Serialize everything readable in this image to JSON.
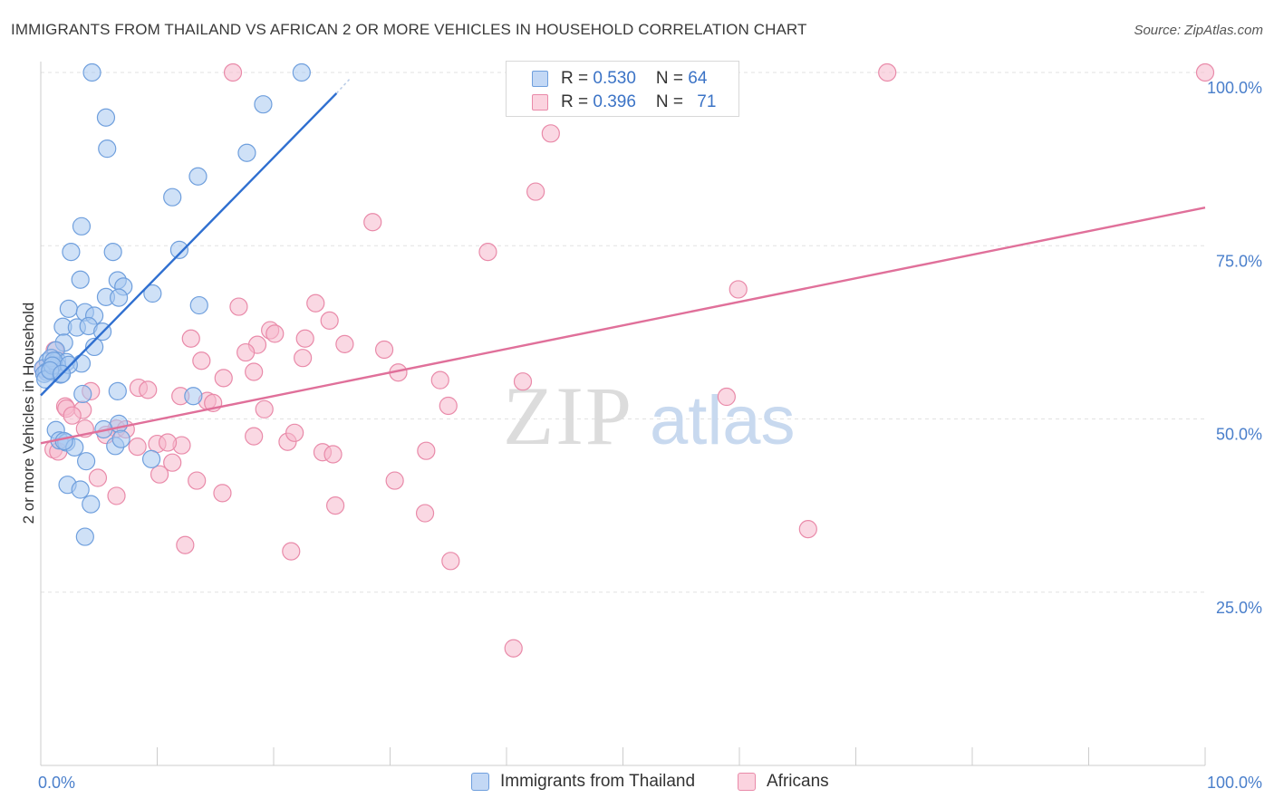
{
  "header": {
    "title": "IMMIGRANTS FROM THAILAND VS AFRICAN 2 OR MORE VEHICLES IN HOUSEHOLD CORRELATION CHART",
    "source": "Source: ZipAtlas.com"
  },
  "watermark": {
    "zip": "ZIP",
    "atlas": "atlas"
  },
  "legend": {
    "rows": [
      {
        "r_label": "R = ",
        "r_value": "0.530",
        "n_label": "N = ",
        "n_value": "64",
        "color": "#a8c8f0"
      },
      {
        "r_label": "R = ",
        "r_value": "0.396",
        "n_label": "N = ",
        "n_value": "71",
        "color": "#f5b8cc"
      }
    ]
  },
  "bottom_legend": [
    "Immigrants from Thailand",
    "Africans"
  ],
  "chart_data": {
    "type": "scatter",
    "title": "IMMIGRANTS FROM THAILAND VS AFRICAN 2 OR MORE VEHICLES IN HOUSEHOLD CORRELATION CHART",
    "xlabel": "",
    "ylabel": "2 or more Vehicles in Household",
    "xlim": [
      0,
      100
    ],
    "ylim": [
      0,
      100
    ],
    "x_ticks": [
      {
        "value": 0,
        "label": "0.0%"
      },
      {
        "value": 100,
        "label": "100.0%"
      }
    ],
    "y_ticks": [
      {
        "value": 25,
        "label": "25.0%"
      },
      {
        "value": 50,
        "label": "50.0%"
      },
      {
        "value": 75,
        "label": "75.0%"
      },
      {
        "value": 100,
        "label": "100.0%"
      }
    ],
    "grid": true,
    "legend_position": "top-center",
    "series": [
      {
        "name": "Immigrants from Thailand",
        "color": "#6f9fdd",
        "fill": "#a8c8f0",
        "R": 0.53,
        "N": 64,
        "trend": {
          "x": [
            0.0,
            25.4
          ],
          "y": [
            53.4,
            97.0
          ],
          "color": "#2f6fd0"
        },
        "trend_ext": {
          "x": [
            25.4,
            26.5
          ],
          "y": [
            97.0,
            99.0
          ]
        },
        "points": [
          [
            4.4,
            100.0
          ],
          [
            22.4,
            100.0
          ],
          [
            5.6,
            93.5
          ],
          [
            19.1,
            95.4
          ],
          [
            5.7,
            89.0
          ],
          [
            17.7,
            88.4
          ],
          [
            13.5,
            85.0
          ],
          [
            11.3,
            82.0
          ],
          [
            3.5,
            77.8
          ],
          [
            2.6,
            74.1
          ],
          [
            6.2,
            74.1
          ],
          [
            11.9,
            74.4
          ],
          [
            3.4,
            70.1
          ],
          [
            6.6,
            70.0
          ],
          [
            7.1,
            69.1
          ],
          [
            9.6,
            68.1
          ],
          [
            5.6,
            67.6
          ],
          [
            6.7,
            67.5
          ],
          [
            13.6,
            66.4
          ],
          [
            2.4,
            65.9
          ],
          [
            3.8,
            65.4
          ],
          [
            4.6,
            64.9
          ],
          [
            1.9,
            63.3
          ],
          [
            3.1,
            63.2
          ],
          [
            4.1,
            63.4
          ],
          [
            5.3,
            62.6
          ],
          [
            2.0,
            61.0
          ],
          [
            1.3,
            59.9
          ],
          [
            4.6,
            60.4
          ],
          [
            0.6,
            58.3
          ],
          [
            1.4,
            58.4
          ],
          [
            2.2,
            58.2
          ],
          [
            3.5,
            58.0
          ],
          [
            0.2,
            57.3
          ],
          [
            0.5,
            56.8
          ],
          [
            1.0,
            56.8
          ],
          [
            1.7,
            56.4
          ],
          [
            0.3,
            56.5
          ],
          [
            1.4,
            57.7
          ],
          [
            0.9,
            58.8
          ],
          [
            3.6,
            53.6
          ],
          [
            6.6,
            54.0
          ],
          [
            13.1,
            53.3
          ],
          [
            1.3,
            48.4
          ],
          [
            6.7,
            49.3
          ],
          [
            1.6,
            46.9
          ],
          [
            2.2,
            46.6
          ],
          [
            6.4,
            46.1
          ],
          [
            6.9,
            47.1
          ],
          [
            2.9,
            45.9
          ],
          [
            3.9,
            43.9
          ],
          [
            9.5,
            44.2
          ],
          [
            2.3,
            40.5
          ],
          [
            3.4,
            39.8
          ],
          [
            4.3,
            37.7
          ],
          [
            3.8,
            33.0
          ],
          [
            0.4,
            55.7
          ],
          [
            1.1,
            58.4
          ],
          [
            1.0,
            57.7
          ],
          [
            2.4,
            57.8
          ],
          [
            0.8,
            57.0
          ],
          [
            1.8,
            56.5
          ],
          [
            5.4,
            48.5
          ],
          [
            2.0,
            46.8
          ]
        ]
      },
      {
        "name": "Africans",
        "color": "#e98aa9",
        "fill": "#f5b8cc",
        "R": 0.396,
        "N": 71,
        "trend": {
          "x": [
            0.0,
            100.0
          ],
          "y": [
            46.5,
            80.5
          ],
          "color": "#e0709a"
        },
        "points": [
          [
            16.5,
            100.0
          ],
          [
            72.7,
            100.0
          ],
          [
            100.0,
            100.0
          ],
          [
            43.8,
            91.2
          ],
          [
            42.5,
            82.8
          ],
          [
            28.5,
            78.4
          ],
          [
            38.4,
            74.1
          ],
          [
            59.9,
            68.7
          ],
          [
            23.6,
            66.7
          ],
          [
            17.0,
            66.2
          ],
          [
            24.8,
            64.2
          ],
          [
            19.7,
            62.8
          ],
          [
            20.1,
            62.3
          ],
          [
            12.9,
            61.6
          ],
          [
            22.7,
            61.6
          ],
          [
            18.6,
            60.7
          ],
          [
            26.1,
            60.8
          ],
          [
            29.5,
            60.0
          ],
          [
            17.6,
            59.6
          ],
          [
            1.2,
            59.9
          ],
          [
            13.8,
            58.4
          ],
          [
            22.5,
            58.8
          ],
          [
            0.2,
            57.2
          ],
          [
            18.3,
            56.8
          ],
          [
            15.7,
            55.9
          ],
          [
            30.7,
            56.7
          ],
          [
            34.3,
            55.6
          ],
          [
            41.4,
            55.4
          ],
          [
            8.4,
            54.5
          ],
          [
            9.2,
            54.2
          ],
          [
            4.3,
            54.0
          ],
          [
            12.0,
            53.3
          ],
          [
            14.3,
            52.6
          ],
          [
            14.8,
            52.3
          ],
          [
            2.1,
            51.8
          ],
          [
            2.2,
            51.5
          ],
          [
            3.6,
            51.3
          ],
          [
            2.7,
            50.5
          ],
          [
            19.2,
            51.4
          ],
          [
            35.0,
            51.9
          ],
          [
            58.9,
            53.2
          ],
          [
            3.8,
            48.6
          ],
          [
            6.5,
            48.6
          ],
          [
            7.3,
            48.5
          ],
          [
            5.6,
            47.7
          ],
          [
            18.3,
            47.5
          ],
          [
            21.2,
            46.7
          ],
          [
            21.8,
            48.0
          ],
          [
            8.3,
            46.0
          ],
          [
            10.0,
            46.4
          ],
          [
            12.1,
            46.2
          ],
          [
            10.9,
            46.6
          ],
          [
            1.1,
            45.6
          ],
          [
            1.5,
            45.3
          ],
          [
            24.2,
            45.2
          ],
          [
            25.1,
            44.9
          ],
          [
            33.1,
            45.4
          ],
          [
            11.3,
            43.7
          ],
          [
            10.2,
            42.0
          ],
          [
            4.9,
            41.5
          ],
          [
            13.4,
            41.1
          ],
          [
            30.4,
            41.1
          ],
          [
            6.5,
            38.9
          ],
          [
            15.6,
            39.3
          ],
          [
            25.3,
            37.5
          ],
          [
            33.0,
            36.4
          ],
          [
            65.9,
            34.1
          ],
          [
            12.4,
            31.8
          ],
          [
            21.5,
            30.9
          ],
          [
            35.2,
            29.5
          ],
          [
            40.6,
            16.9
          ]
        ]
      }
    ]
  }
}
